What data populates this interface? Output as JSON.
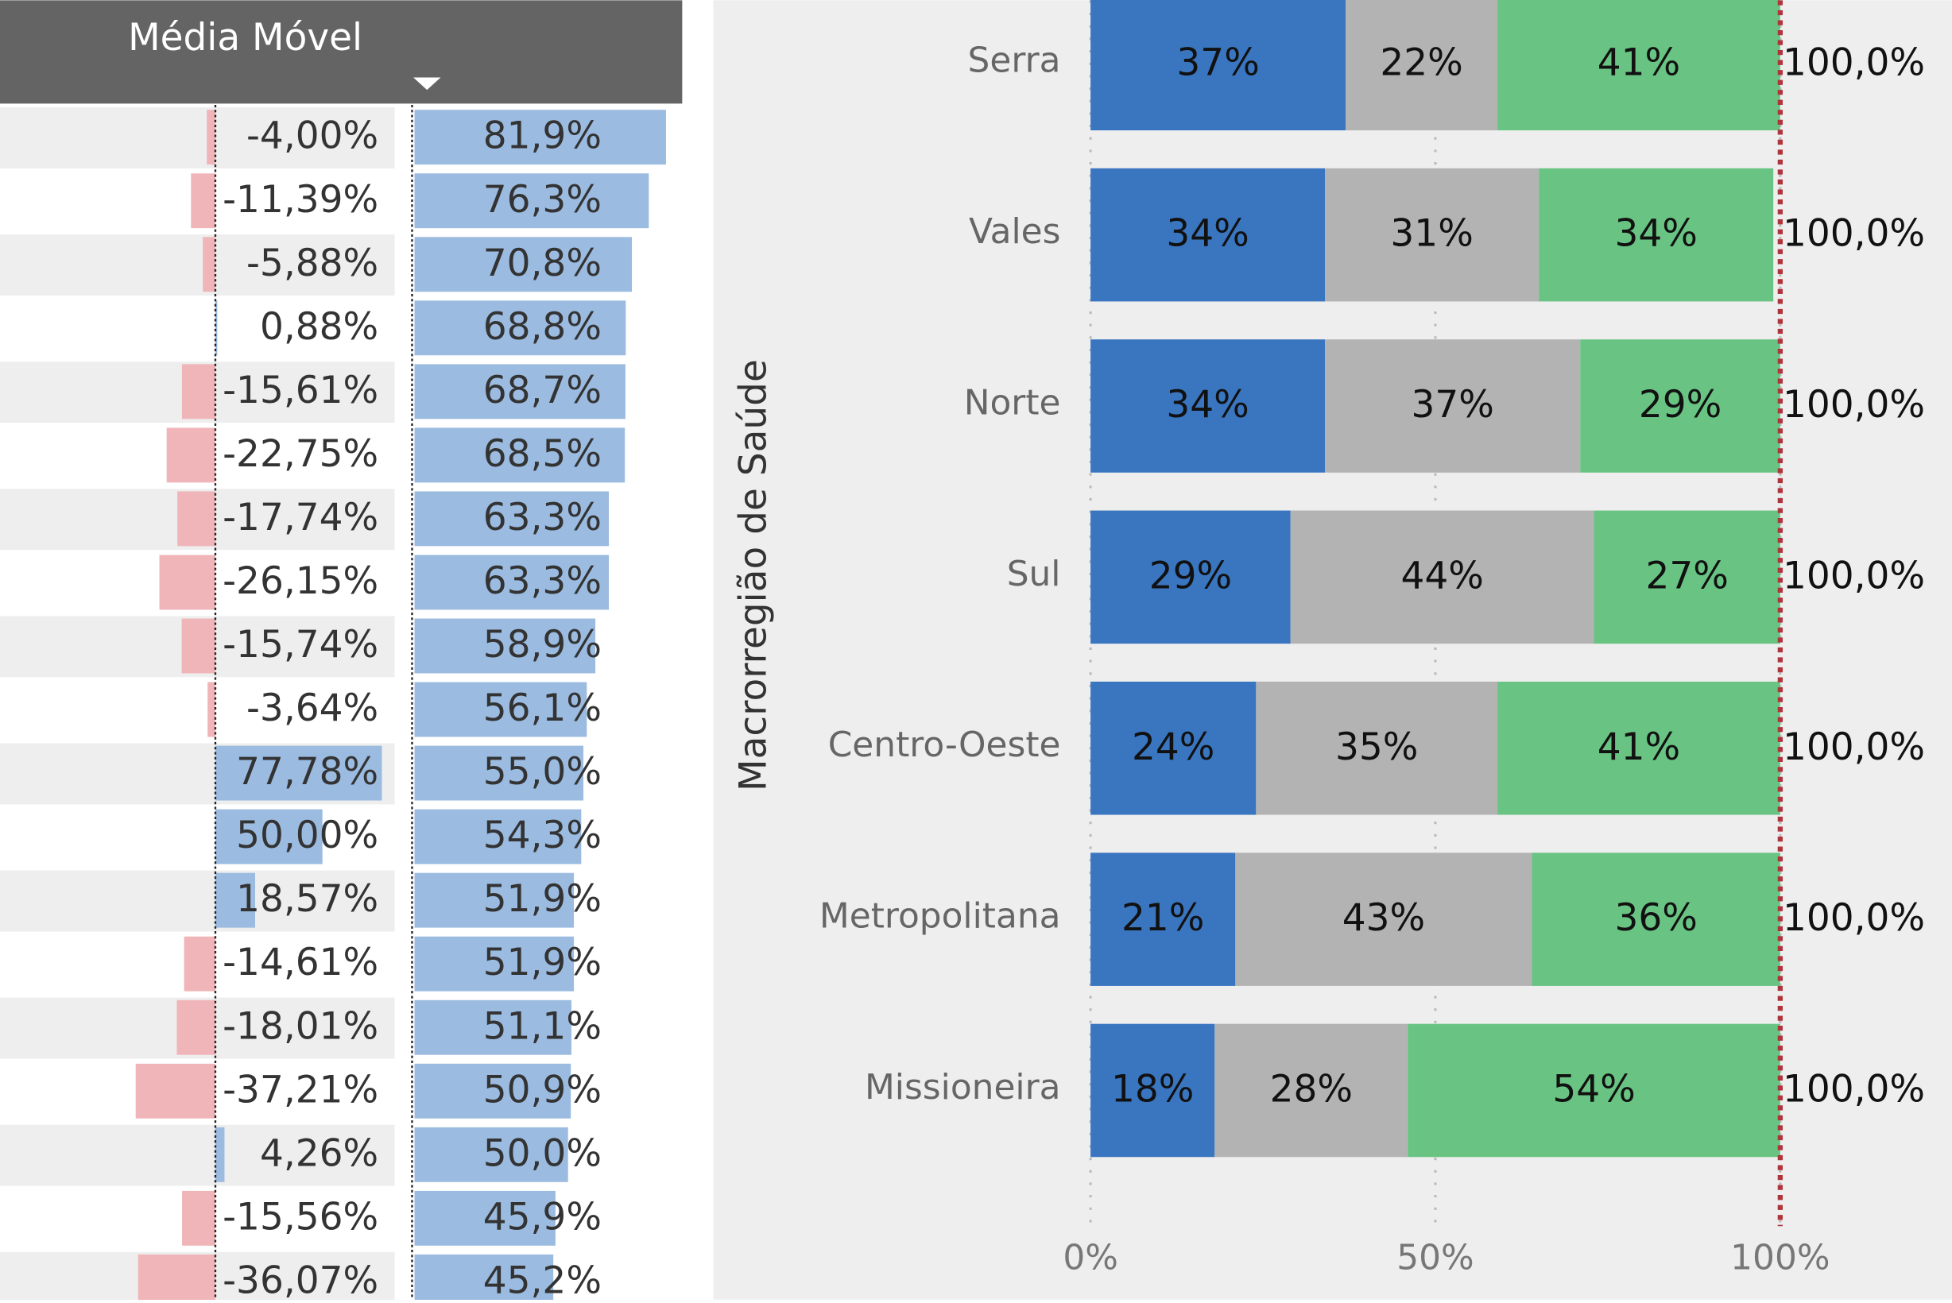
{
  "chart_data": [
    {
      "type": "databar-table",
      "header": "Média Móvel",
      "series": [
        {
          "color": "#9bbbe0",
          "negative_color": "#f0b5b9",
          "values": [
            -4.0,
            -11.39,
            -5.88,
            0.88,
            -15.61,
            -22.75,
            -17.74,
            -26.15,
            -15.74,
            -3.64,
            77.78,
            50.0,
            18.57,
            -14.61,
            -18.01,
            -37.21,
            4.26,
            -15.56,
            -36.07
          ],
          "value_labels": [
            "-4,00%",
            "-11,39%",
            "-5,88%",
            "0,88%",
            "-15,61%",
            "-22,75%",
            "-17,74%",
            "-26,15%",
            "-15,74%",
            "-3,64%",
            "77,78%",
            "50,00%",
            "18,57%",
            "-14,61%",
            "-18,01%",
            "-37,21%",
            "4,26%",
            "-15,56%",
            "-36,07%"
          ]
        },
        {
          "color": "#9bbbe0",
          "values": [
            81.9,
            76.3,
            70.8,
            68.8,
            68.7,
            68.5,
            63.3,
            63.3,
            58.9,
            56.1,
            55.0,
            54.3,
            51.9,
            51.9,
            51.1,
            50.9,
            50.0,
            45.9,
            45.2
          ],
          "value_labels": [
            "81,9%",
            "76,3%",
            "70,8%",
            "68,8%",
            "68,7%",
            "68,5%",
            "63,3%",
            "63,3%",
            "58,9%",
            "56,1%",
            "55,0%",
            "54,3%",
            "51,9%",
            "51,9%",
            "51,1%",
            "50,9%",
            "50,0%",
            "45,9%",
            "45,2%"
          ]
        }
      ]
    },
    {
      "type": "stacked-hbar",
      "ylabel": "Macrorregião de Saúde",
      "categories": [
        "Serra",
        "Vales",
        "Norte",
        "Sul",
        "Centro-Oeste",
        "Metropolitana",
        "Missioneira"
      ],
      "series": [
        {
          "color": "#3a76c0",
          "values": [
            37,
            34,
            34,
            29,
            24,
            21,
            18
          ],
          "value_labels": [
            "37%",
            "34%",
            "34%",
            "29%",
            "24%",
            "21%",
            "18%"
          ]
        },
        {
          "color": "#b3b3b3",
          "values": [
            22,
            31,
            37,
            44,
            35,
            43,
            28
          ],
          "value_labels": [
            "22%",
            "31%",
            "37%",
            "44%",
            "35%",
            "43%",
            "28%"
          ]
        },
        {
          "color": "#69c483",
          "values": [
            41,
            34,
            29,
            27,
            41,
            36,
            54
          ],
          "value_labels": [
            "41%",
            "34%",
            "29%",
            "27%",
            "41%",
            "36%",
            "54%"
          ]
        }
      ],
      "totals": [
        100,
        100,
        100,
        100,
        100,
        100,
        100
      ],
      "total_labels": [
        "100,0%",
        "100,0%",
        "100,0%",
        "100,0%",
        "100,0%",
        "100,0%",
        "100,0%"
      ],
      "reference_line": 100,
      "reference_color": "#b0343c",
      "xlim": [
        0,
        100
      ],
      "xticks": [
        {
          "value": 0,
          "label": "0%"
        },
        {
          "value": 50,
          "label": "50%"
        },
        {
          "value": 100,
          "label": "100%"
        }
      ],
      "grid": true
    }
  ]
}
